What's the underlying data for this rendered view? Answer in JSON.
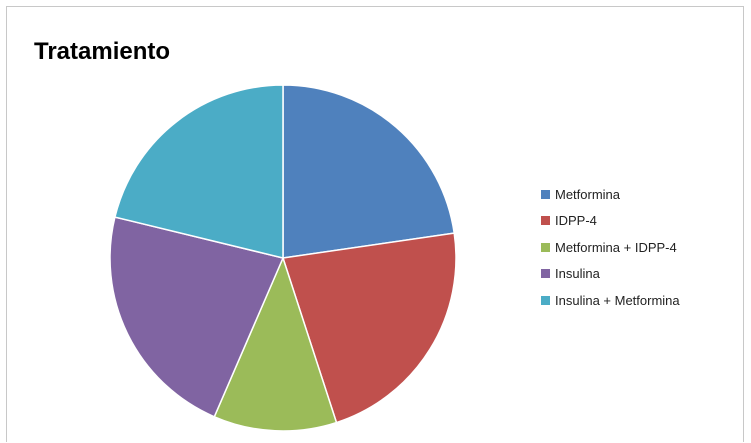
{
  "chart_data": {
    "type": "pie",
    "title": "Tratamiento",
    "legend_position": "right",
    "categories": [
      "Metformina",
      "IDPP-4",
      "Metformina + IDPP-4",
      "Insulina",
      "Insulina + Metformina"
    ],
    "values": [
      22.7,
      22.3,
      11.5,
      22.3,
      21.2
    ],
    "colors": [
      "#4f81bd",
      "#c0504d",
      "#9bbb59",
      "#8064a2",
      "#4bacc6"
    ],
    "start_angle_deg": 0,
    "direction": "clockwise"
  }
}
